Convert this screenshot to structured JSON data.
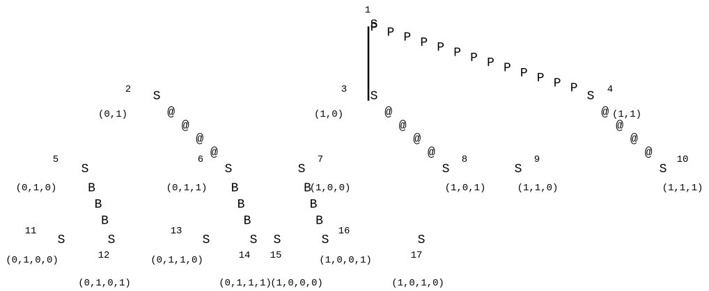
{
  "diagram": {
    "node_symbol": "S",
    "edge_markers": {
      "P": "P",
      "at": "@",
      "B": "B"
    },
    "nodes": [
      {
        "id": "1",
        "number": "1",
        "address": ""
      },
      {
        "id": "2",
        "number": "2",
        "address": "(0,1)"
      },
      {
        "id": "3",
        "number": "3",
        "address": "(1,0)"
      },
      {
        "id": "4",
        "number": "4",
        "address": "(1,1)"
      },
      {
        "id": "5",
        "number": "5",
        "address": "(0,1,0)"
      },
      {
        "id": "6",
        "number": "6",
        "address": "(0,1,1)"
      },
      {
        "id": "7",
        "number": "7",
        "address": "(1,0,0)"
      },
      {
        "id": "8",
        "number": "8",
        "address": "(1,0,1)"
      },
      {
        "id": "9",
        "number": "9",
        "address": "(1,1,0)"
      },
      {
        "id": "10",
        "number": "10",
        "address": "(1,1,1)"
      },
      {
        "id": "11",
        "number": "11",
        "address": "(0,1,0,0)"
      },
      {
        "id": "12",
        "number": "12",
        "address": "(0,1,0,1)"
      },
      {
        "id": "13",
        "number": "13",
        "address": "(0,1,1,0)"
      },
      {
        "id": "14",
        "number": "14",
        "address": "(0,1,1,1)"
      },
      {
        "id": "15",
        "number": "15",
        "address": "(1,0,0,0)"
      },
      {
        "id": "16",
        "number": "16",
        "address": "(1,0,0,1)"
      },
      {
        "id": "17",
        "number": "17",
        "address": "(1,0,1,0)"
      }
    ],
    "edges": [
      {
        "from": "1",
        "to": "3",
        "style": "line"
      },
      {
        "from": "1",
        "to": "4",
        "style": "P"
      },
      {
        "from": "2",
        "to": "6",
        "style": "at"
      },
      {
        "from": "3",
        "to": "8",
        "style": "at"
      },
      {
        "from": "4",
        "to": "10",
        "style": "at"
      },
      {
        "from": "5",
        "to": "12",
        "style": "B"
      },
      {
        "from": "6",
        "to": "14",
        "style": "B"
      },
      {
        "from": "7",
        "to": "16",
        "style": "B"
      }
    ]
  }
}
